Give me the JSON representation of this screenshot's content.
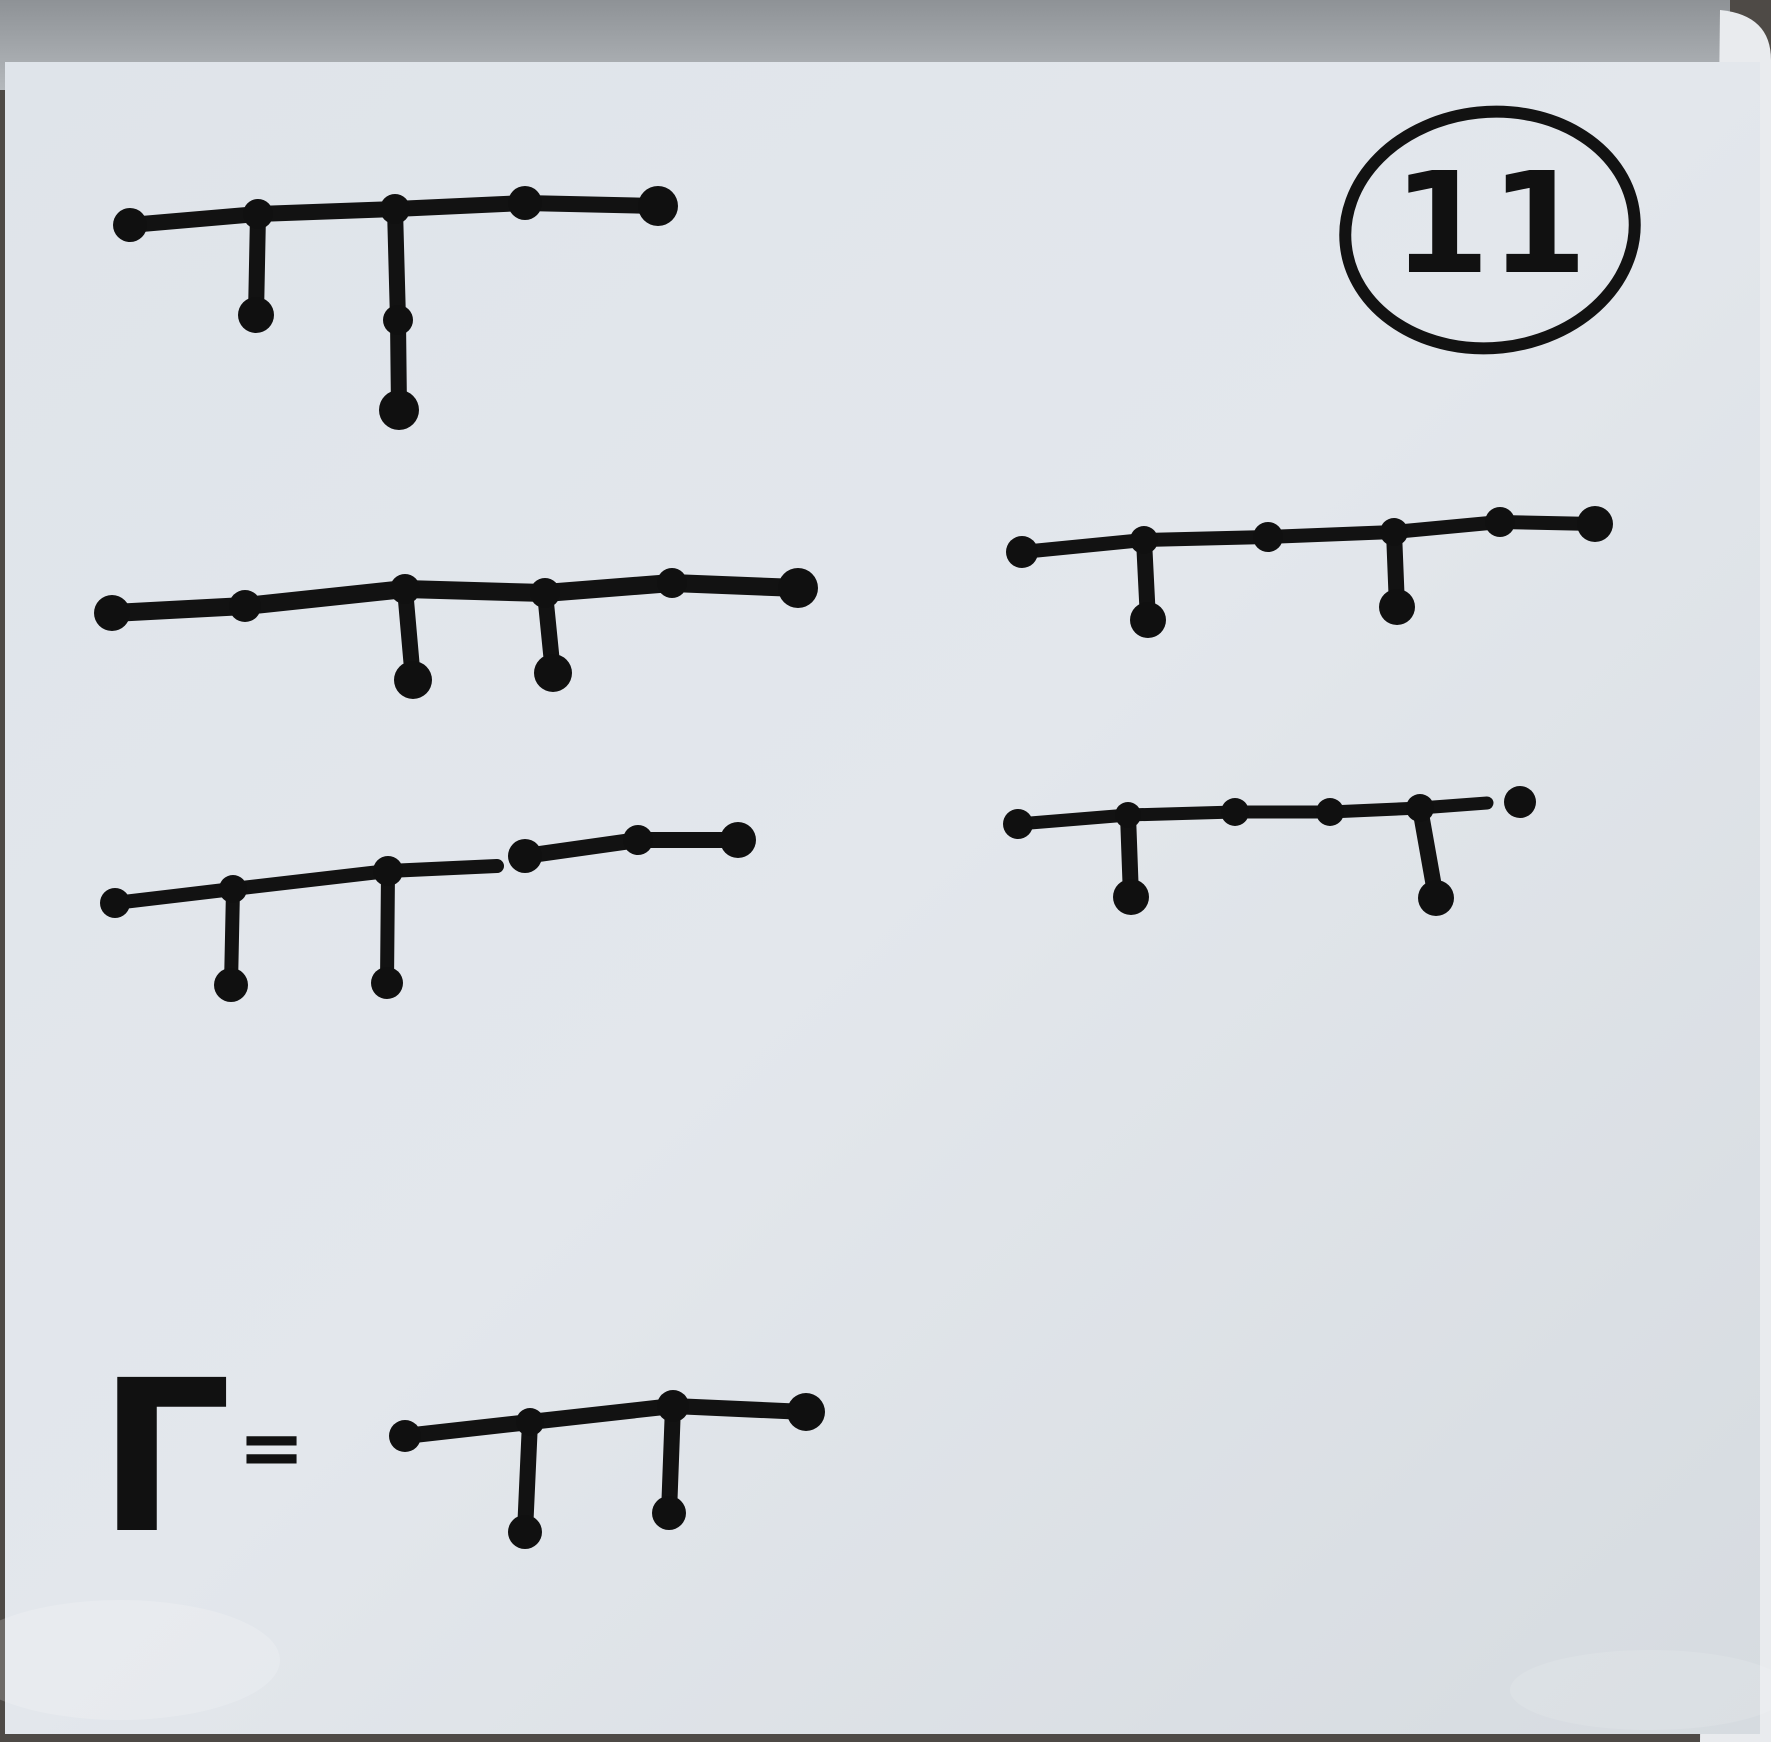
{
  "board": {
    "label_text": "11",
    "gamma_symbol": "Γ",
    "equals_sign": "="
  },
  "graphs": [
    {
      "name": "tree-top-left",
      "spine_nodes": 5,
      "branches": [
        {
          "at": 1,
          "length": 1
        },
        {
          "at": 2,
          "length": 2
        }
      ]
    },
    {
      "name": "tree-middle-left",
      "spine_nodes": 6,
      "branches": [
        {
          "at": 2,
          "length": 1
        },
        {
          "at": 3,
          "length": 1
        }
      ]
    },
    {
      "name": "tree-middle-right",
      "spine_nodes": 6,
      "branches": [
        {
          "at": 1,
          "length": 1
        },
        {
          "at": 3,
          "length": 1
        }
      ]
    },
    {
      "name": "tree-lower-left",
      "spine_nodes": 6,
      "branches": [
        {
          "at": 1,
          "length": 1
        },
        {
          "at": 2,
          "length": 1
        }
      ]
    },
    {
      "name": "tree-lower-right",
      "spine_nodes": 6,
      "branches": [
        {
          "at": 1,
          "length": 1
        },
        {
          "at": 4,
          "length": 1
        }
      ]
    },
    {
      "name": "gamma-tree",
      "spine_nodes": 4,
      "branches": [
        {
          "at": 1,
          "length": 1
        },
        {
          "at": 2,
          "length": 1
        }
      ]
    }
  ]
}
